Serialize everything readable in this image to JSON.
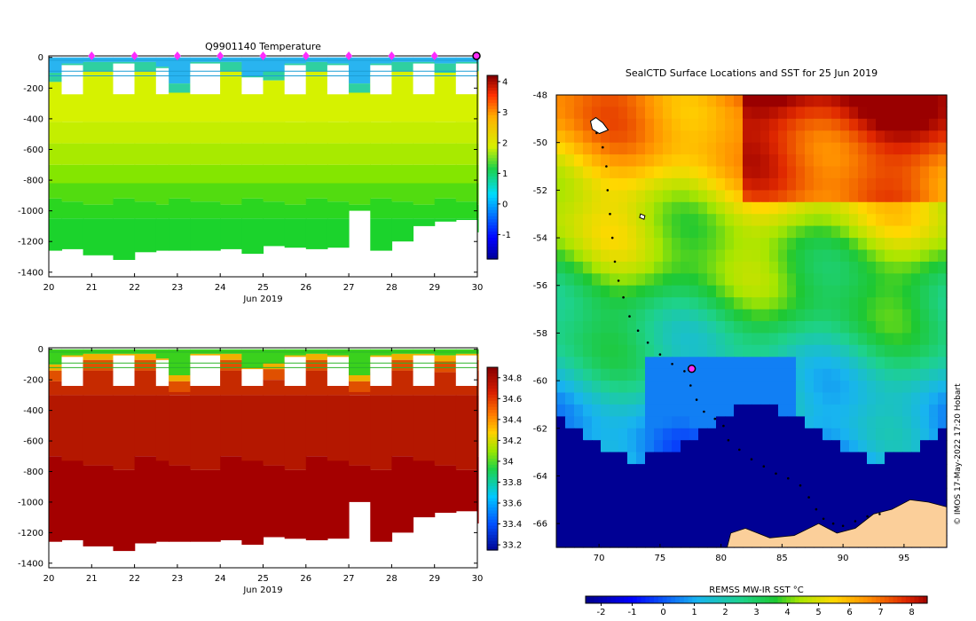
{
  "chart_data": [
    {
      "type": "heatmap",
      "title": "Q9901140  Temperature",
      "xlabel": "Jun 2019",
      "x_ticks": [
        "20",
        "21",
        "22",
        "23",
        "24",
        "25",
        "26",
        "27",
        "28",
        "29",
        "30"
      ],
      "xlim": [
        20,
        30
      ],
      "y_ticks": [
        "0",
        "-200",
        "-400",
        "-600",
        "-800",
        "-1000",
        "-1200",
        "-1400"
      ],
      "ylim": [
        -1430,
        10
      ],
      "colorbar_ticks": [
        "-1",
        "0",
        "1",
        "2",
        "3",
        "4"
      ],
      "colorbar_range": [
        -1.8,
        4.2
      ],
      "profile_days": [
        20.0,
        20.3,
        20.8,
        21.5,
        22.0,
        22.5,
        22.8,
        23.3,
        24.0,
        24.5,
        25.0,
        25.5,
        26.0,
        26.5,
        27.0,
        27.5,
        28.0,
        28.5,
        29.0,
        29.5,
        30.0
      ],
      "profile_max_depth": [
        1260,
        1250,
        1290,
        1320,
        1270,
        1260,
        1260,
        1260,
        1250,
        1280,
        1230,
        1240,
        1250,
        1240,
        1000,
        1260,
        1200,
        1100,
        1070,
        1060,
        1140
      ],
      "surface_layer_depth": [
        100,
        40,
        30,
        30,
        30,
        60,
        170,
        30,
        30,
        120,
        90,
        40,
        30,
        40,
        170,
        40,
        30,
        30,
        40,
        30,
        30
      ],
      "profile_markers": [
        21,
        22,
        23,
        24,
        25,
        26,
        27,
        28,
        29
      ],
      "current_marker": 30,
      "colors": {
        "surface": "#29b4f0",
        "upper": "#d6f200",
        "mid": "#84e600",
        "deep": "#1bd32c",
        "line": "#1c9ed6"
      }
    },
    {
      "type": "heatmap",
      "title": "",
      "xlabel": "Jun 2019",
      "x_ticks": [
        "20",
        "21",
        "22",
        "23",
        "24",
        "25",
        "26",
        "27",
        "28",
        "29",
        "30"
      ],
      "xlim": [
        20,
        30
      ],
      "y_ticks": [
        "0",
        "-200",
        "-400",
        "-600",
        "-800",
        "-1000",
        "-1200",
        "-1400"
      ],
      "ylim": [
        -1430,
        10
      ],
      "colorbar_ticks": [
        "33.2",
        "33.4",
        "33.6",
        "33.8",
        "34",
        "34.2",
        "34.4",
        "34.6",
        "34.8"
      ],
      "colorbar_range": [
        33.15,
        34.9
      ],
      "colors": {
        "surface": "#3ad11d",
        "upper": "#c62a00",
        "mid": "#b41700",
        "deep": "#a40000"
      }
    },
    {
      "type": "heatmap",
      "title": "SealCTD Surface Locations and SST for 25 Jun 2019",
      "xlabel": "",
      "x_ticks": [
        "70",
        "75",
        "80",
        "85",
        "90",
        "95"
      ],
      "xlim": [
        66.5,
        98.5
      ],
      "y_ticks": [
        "-48",
        "-50",
        "-52",
        "-54",
        "-56",
        "-58",
        "-60",
        "-62",
        "-64",
        "-66"
      ],
      "ylim": [
        -67,
        -48
      ],
      "colorbar_title": "REMSS MW-IR SST °C",
      "colorbar_ticks": [
        "-2",
        "-1",
        "0",
        "1",
        "2",
        "3",
        "4",
        "5",
        "6",
        "7",
        "8"
      ],
      "colorbar_range": [
        -2.5,
        8.5
      ],
      "current_location": [
        77.6,
        -59.5
      ],
      "track": [
        [
          69.8,
          -49.6
        ],
        [
          70.3,
          -50.2
        ],
        [
          70.6,
          -51.0
        ],
        [
          70.7,
          -52.0
        ],
        [
          70.9,
          -53.0
        ],
        [
          71.1,
          -54.0
        ],
        [
          71.3,
          -55.0
        ],
        [
          71.6,
          -55.8
        ],
        [
          72.0,
          -56.5
        ],
        [
          72.5,
          -57.3
        ],
        [
          73.2,
          -57.9
        ],
        [
          74.0,
          -58.4
        ],
        [
          75.0,
          -58.9
        ],
        [
          76.0,
          -59.3
        ],
        [
          77.0,
          -59.6
        ],
        [
          77.5,
          -60.2
        ],
        [
          78.0,
          -60.8
        ],
        [
          78.6,
          -61.3
        ],
        [
          79.5,
          -61.6
        ],
        [
          80.2,
          -61.9
        ],
        [
          80.6,
          -62.5
        ],
        [
          81.5,
          -62.9
        ],
        [
          82.5,
          -63.3
        ],
        [
          83.5,
          -63.6
        ],
        [
          84.5,
          -63.9
        ],
        [
          85.5,
          -64.1
        ],
        [
          86.5,
          -64.4
        ],
        [
          87.2,
          -64.9
        ],
        [
          87.8,
          -65.4
        ],
        [
          88.4,
          -65.8
        ],
        [
          89.2,
          -66.0
        ],
        [
          90.0,
          -66.1
        ],
        [
          91.0,
          -65.9
        ],
        [
          92.0,
          -65.7
        ],
        [
          93.0,
          -65.6
        ]
      ],
      "colors": {
        "land": "#fbcf9a",
        "ice": "#000094"
      }
    }
  ],
  "credit": "© IMOS 17-May-2022 17:20 Hobart"
}
